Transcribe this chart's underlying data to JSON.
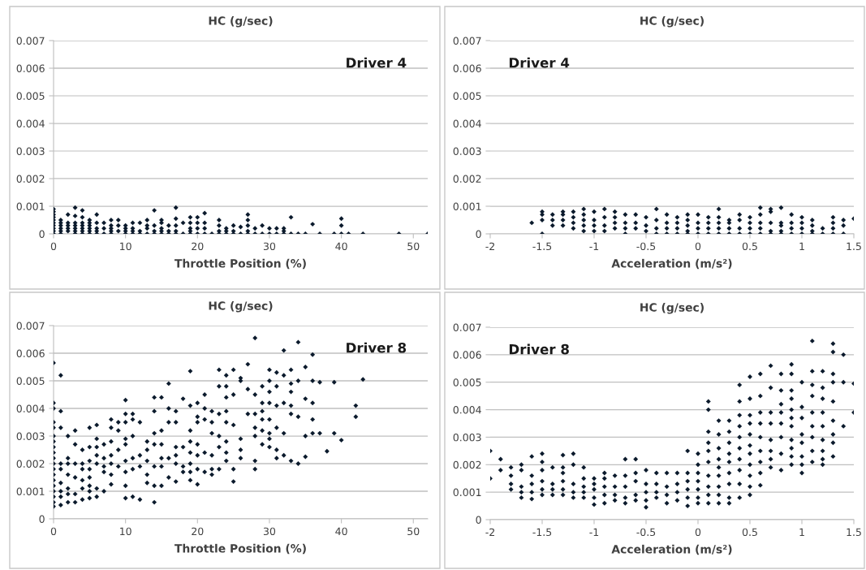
{
  "chart_data": [
    {
      "type": "scatter",
      "title": "HC (g/sec)",
      "xlabel": "Throttle Position (%)",
      "annotations": [
        "Driver 4"
      ],
      "color": "#0b1a2c",
      "marker": "diamond",
      "grid": "y",
      "xlim": [
        0,
        52
      ],
      "xticks": [
        0,
        10,
        20,
        30,
        40,
        50
      ],
      "ylim": [
        0,
        0.007
      ],
      "yticks": [
        0,
        0.001,
        0.002,
        0.003,
        0.004,
        0.005,
        0.006,
        0.007
      ],
      "x": [
        0,
        0,
        0,
        0,
        0,
        0,
        0,
        0,
        0,
        0,
        1,
        1,
        1,
        1,
        1,
        1,
        2,
        2,
        2,
        2,
        2,
        3,
        3,
        3,
        3,
        3,
        3,
        3,
        4,
        4,
        4,
        4,
        4,
        4,
        4,
        5,
        5,
        5,
        5,
        5,
        5,
        6,
        6,
        6,
        6,
        6,
        7,
        7,
        7,
        8,
        8,
        8,
        8,
        8,
        9,
        9,
        9,
        10,
        10,
        10,
        10,
        11,
        11,
        11,
        11,
        12,
        12,
        12,
        13,
        13,
        13,
        13,
        14,
        14,
        14,
        14,
        15,
        15,
        15,
        15,
        15,
        16,
        16,
        16,
        17,
        17,
        17,
        17,
        17,
        18,
        18,
        19,
        19,
        19,
        19,
        19,
        20,
        20,
        20,
        20,
        21,
        21,
        21,
        21,
        22,
        23,
        23,
        23,
        23,
        24,
        24,
        24,
        25,
        25,
        25,
        26,
        26,
        27,
        27,
        27,
        27,
        27,
        28,
        28,
        29,
        29,
        30,
        30,
        31,
        31,
        32,
        32,
        32,
        33,
        33,
        34,
        35,
        36,
        37,
        39,
        40,
        40,
        40,
        41,
        43,
        48,
        52
      ],
      "values": [
        0,
        0.0001,
        0.0002,
        0.0003,
        0.0004,
        0.0005,
        0.0006,
        0.0007,
        0.0008,
        0.0009,
        0,
        0.0001,
        0.0002,
        0.0003,
        0.0004,
        0.0005,
        0.0001,
        0.0002,
        0.0003,
        0.0004,
        0.0007,
        0,
        0.0001,
        0.0002,
        0.0003,
        0.0004,
        0.00065,
        0.00095,
        0,
        0.0001,
        0.0002,
        0.0003,
        0.0004,
        0.0006,
        0.00085,
        0,
        0.0001,
        0.0002,
        0.0003,
        0.0004,
        0.0005,
        0,
        0.0001,
        0.0002,
        0.0004,
        0.0007,
        0,
        0.0002,
        0.0004,
        0,
        0.0001,
        0.0002,
        0.0003,
        0.0005,
        0.0001,
        0.0003,
        0.0005,
        0,
        0.0001,
        0.0002,
        0.0003,
        0,
        0.0001,
        0.0002,
        0.0004,
        0,
        0.0001,
        0.0004,
        0,
        0.0002,
        0.0003,
        0.0005,
        0,
        0.0001,
        0.0003,
        0.00085,
        0,
        0.0001,
        0.0002,
        0.0004,
        0.0005,
        0,
        0.0001,
        0.0003,
        0,
        0.0001,
        0.0003,
        0.00055,
        0.00095,
        0,
        0.0004,
        0,
        0.0001,
        0.0002,
        0.0004,
        0.0006,
        0,
        0.0002,
        0.0004,
        0.0006,
        0,
        0.0002,
        0.0004,
        0.00075,
        0,
        0,
        0.0001,
        0.0003,
        0.0005,
        0,
        0.0001,
        0.0002,
        0,
        0.0001,
        0.0003,
        0,
        0.00025,
        0,
        0.0001,
        0.0003,
        0.0005,
        0.0007,
        0,
        0.0002,
        0,
        0.0003,
        0,
        0.0002,
        0,
        0.0002,
        0,
        0.0001,
        0.0002,
        0,
        0.0006,
        0,
        0,
        0.00035,
        0,
        0,
        0,
        0.0003,
        0.00055,
        0,
        0,
        0,
        0
      ]
    },
    {
      "type": "scatter",
      "title": "HC (g/sec)",
      "xlabel": "Acceleration (m/s²)",
      "annotations": [
        "Driver 4"
      ],
      "color": "#0b1a2c",
      "marker": "diamond",
      "grid": "y",
      "xlim": [
        -2,
        1.5
      ],
      "xticks": [
        -2,
        -1.5,
        -1,
        -0.5,
        0,
        0.5,
        1,
        1.5
      ],
      "ylim": [
        0,
        0.007
      ],
      "yticks": [
        0,
        0.001,
        0.002,
        0.003,
        0.004,
        0.005,
        0.006,
        0.007
      ],
      "x": [
        -1.6,
        -1.5,
        -1.5,
        -1.5,
        -1.5,
        -1.4,
        -1.4,
        -1.4,
        -1.3,
        -1.3,
        -1.3,
        -1.3,
        -1.2,
        -1.2,
        -1.2,
        -1.2,
        -1.1,
        -1.1,
        -1.1,
        -1.1,
        -1.1,
        -1,
        -1,
        -1,
        -1,
        -0.9,
        -0.9,
        -0.9,
        -0.9,
        -0.8,
        -0.8,
        -0.8,
        -0.8,
        -0.7,
        -0.7,
        -0.7,
        -0.7,
        -0.6,
        -0.6,
        -0.6,
        -0.5,
        -0.5,
        -0.5,
        -0.4,
        -0.4,
        -0.4,
        -0.4,
        -0.3,
        -0.3,
        -0.3,
        -0.3,
        -0.2,
        -0.2,
        -0.2,
        -0.2,
        -0.1,
        -0.1,
        -0.1,
        -0.1,
        -0.1,
        0,
        0,
        0,
        0,
        0.1,
        0.1,
        0.1,
        0.1,
        0.2,
        0.2,
        0.2,
        0.2,
        0.2,
        0.3,
        0.3,
        0.3,
        0.3,
        0.4,
        0.4,
        0.4,
        0.4,
        0.5,
        0.5,
        0.5,
        0.5,
        0.6,
        0.6,
        0.6,
        0.6,
        0.6,
        0.7,
        0.7,
        0.7,
        0.7,
        0.7,
        0.8,
        0.8,
        0.8,
        0.8,
        0.8,
        0.9,
        0.9,
        0.9,
        0.9,
        1,
        1,
        1,
        1,
        1.1,
        1.1,
        1.1,
        1.1,
        1.2,
        1.2,
        1.3,
        1.3,
        1.3,
        1.3,
        1.4,
        1.4,
        1.4,
        1.5
      ],
      "values": [
        0.0004,
        0,
        0.0005,
        0.0007,
        0.0008,
        0.0003,
        0.0005,
        0.0007,
        0.0003,
        0.0005,
        0.0007,
        0.0008,
        0.0002,
        0.0004,
        0.0006,
        0.0008,
        0.0001,
        0.0003,
        0.0005,
        0.0007,
        0.0009,
        0.0001,
        0.0003,
        0.0005,
        0.0008,
        0.0001,
        0.0003,
        0.0006,
        0.0009,
        0.0002,
        0.0004,
        0.0006,
        0.0008,
        0,
        0.0002,
        0.0004,
        0.0007,
        0.0002,
        0.0004,
        0.0007,
        0.0001,
        0.0003,
        0.0006,
        0,
        0.0002,
        0.0005,
        0.0009,
        0,
        0.0002,
        0.0004,
        0.0007,
        0,
        0.0002,
        0.0004,
        0.0006,
        0,
        0.0001,
        0.0003,
        0.0005,
        0.0007,
        0,
        0.0002,
        0.0004,
        0.0007,
        0,
        0.0002,
        0.0004,
        0.0006,
        0,
        0.0002,
        0.0004,
        0.0006,
        0.0009,
        0,
        0.0002,
        0.0004,
        0.0005,
        0,
        0.0002,
        0.0005,
        0.0007,
        0,
        0.0002,
        0.0004,
        0.0006,
        0,
        0.0002,
        0.0004,
        0.0007,
        0.00095,
        0,
        0.0001,
        0.0004,
        0.0008,
        0.0009,
        0,
        0.0001,
        0.0003,
        0.0004,
        0.00095,
        0,
        0.0002,
        0.0004,
        0.0007,
        0,
        0.0002,
        0.0004,
        0.0006,
        0,
        0.0001,
        0.0003,
        0.0005,
        0,
        0.0002,
        0,
        0.0002,
        0.0004,
        0.0006,
        0,
        0.0003,
        0.0005,
        0.00055
      ]
    },
    {
      "type": "scatter",
      "title": "HC (g/sec)",
      "xlabel": "Throttle Position (%)",
      "annotations": [
        "Driver 8"
      ],
      "color": "#0b1a2c",
      "marker": "diamond",
      "grid": "y",
      "xlim": [
        0,
        52
      ],
      "xticks": [
        0,
        10,
        20,
        30,
        40,
        50
      ],
      "ylim": [
        0,
        0.007
      ],
      "yticks": [
        0,
        0.001,
        0.002,
        0.003,
        0.004,
        0.005,
        0.006,
        0.007
      ],
      "x": [
        0,
        0,
        0,
        0,
        0,
        0,
        0,
        0,
        0,
        0,
        0,
        0,
        0,
        0,
        0,
        0,
        0,
        0,
        0,
        1,
        1,
        1,
        1,
        1,
        1,
        1,
        1,
        1,
        2,
        2,
        2,
        2,
        2,
        2,
        2,
        3,
        3,
        3,
        3,
        3,
        3,
        4,
        4,
        4,
        4,
        4,
        4,
        5,
        5,
        5,
        5,
        5,
        5,
        5,
        5,
        6,
        6,
        6,
        6,
        6,
        6,
        6,
        7,
        7,
        7,
        7,
        7,
        8,
        8,
        8,
        8,
        8,
        8,
        8,
        9,
        9,
        9,
        9,
        10,
        10,
        10,
        10,
        10,
        10,
        10,
        10,
        10,
        11,
        11,
        11,
        11,
        11,
        11,
        12,
        12,
        12,
        12,
        13,
        13,
        13,
        13,
        13,
        14,
        14,
        14,
        14,
        14,
        14,
        14,
        15,
        15,
        15,
        15,
        15,
        15,
        16,
        16,
        16,
        16,
        16,
        17,
        17,
        17,
        17,
        17,
        17,
        18,
        18,
        18,
        18,
        19,
        19,
        19,
        19,
        19,
        19,
        19,
        19,
        20,
        20,
        20,
        20,
        20,
        20,
        20,
        21,
        21,
        21,
        21,
        21,
        22,
        22,
        22,
        22,
        22,
        22,
        23,
        23,
        23,
        23,
        23,
        23,
        24,
        24,
        24,
        24,
        24,
        24,
        24,
        24,
        25,
        25,
        25,
        25,
        25,
        26,
        26,
        26,
        26,
        26,
        27,
        27,
        27,
        28,
        28,
        28,
        28,
        28,
        28,
        28,
        29,
        29,
        29,
        29,
        29,
        29,
        30,
        30,
        30,
        30,
        30,
        30,
        30,
        30,
        31,
        31,
        31,
        31,
        31,
        31,
        32,
        32,
        32,
        32,
        32,
        33,
        33,
        33,
        33,
        33,
        33,
        34,
        34,
        34,
        34,
        35,
        35,
        35,
        35,
        36,
        36,
        36,
        36,
        36,
        37,
        37,
        38,
        39,
        39,
        40,
        42,
        42,
        43
      ],
      "values": [
        0.00045,
        0.0006,
        0.0008,
        0.001,
        0.0012,
        0.0014,
        0.0016,
        0.0018,
        0.002,
        0.0022,
        0.0024,
        0.0026,
        0.0028,
        0.003,
        0.0033,
        0.0035,
        0.004,
        0.0042,
        0.00565,
        0.0005,
        0.0008,
        0.001,
        0.0013,
        0.0018,
        0.002,
        0.0033,
        0.0039,
        0.0052,
        0.0006,
        0.0009,
        0.0011,
        0.0016,
        0.002,
        0.0022,
        0.003,
        0.0006,
        0.0009,
        0.0015,
        0.002,
        0.0027,
        0.0032,
        0.0007,
        0.0011,
        0.0014,
        0.0018,
        0.002,
        0.0025,
        0.00075,
        0.001,
        0.0012,
        0.0015,
        0.0018,
        0.0021,
        0.0026,
        0.0033,
        0.0008,
        0.0011,
        0.002,
        0.0023,
        0.0026,
        0.0029,
        0.0034,
        0.001,
        0.0017,
        0.0019,
        0.0022,
        0.0027,
        0.00125,
        0.0016,
        0.002,
        0.0023,
        0.0028,
        0.0033,
        0.0036,
        0.0019,
        0.0025,
        0.0032,
        0.0035,
        0.00075,
        0.0012,
        0.0017,
        0.0021,
        0.0027,
        0.0029,
        0.0035,
        0.0038,
        0.0043,
        0.0008,
        0.0018,
        0.0022,
        0.003,
        0.0036,
        0.0038,
        0.0007,
        0.0019,
        0.0023,
        0.0035,
        0.0013,
        0.0016,
        0.0021,
        0.0025,
        0.0028,
        0.0006,
        0.0012,
        0.0019,
        0.0027,
        0.0031,
        0.0039,
        0.0044,
        0.0012,
        0.0019,
        0.0022,
        0.0027,
        0.0032,
        0.0044,
        0.0015,
        0.0022,
        0.0035,
        0.004,
        0.0049,
        0.00135,
        0.002,
        0.0023,
        0.0026,
        0.0035,
        0.0039,
        0.0017,
        0.0019,
        0.0026,
        0.00435,
        0.0014,
        0.0017,
        0.002,
        0.0024,
        0.0028,
        0.0032,
        0.0041,
        0.00535,
        0.00125,
        0.0018,
        0.0023,
        0.0027,
        0.0035,
        0.0037,
        0.0042,
        0.0017,
        0.0024,
        0.0036,
        0.004,
        0.0045,
        0.0016,
        0.0018,
        0.0023,
        0.0031,
        0.0035,
        0.0039,
        0.0018,
        0.0026,
        0.003,
        0.0038,
        0.0048,
        0.0054,
        0.0021,
        0.0024,
        0.0028,
        0.0035,
        0.0039,
        0.0044,
        0.0048,
        0.0052,
        0.00135,
        0.0018,
        0.0034,
        0.0045,
        0.0054,
        0.0022,
        0.0025,
        0.0029,
        0.005,
        0.0051,
        0.0038,
        0.0047,
        0.0056,
        0.0018,
        0.0021,
        0.003,
        0.0033,
        0.0038,
        0.0045,
        0.00655,
        0.0027,
        0.0032,
        0.0036,
        0.0039,
        0.0042,
        0.0048,
        0.0026,
        0.0029,
        0.0031,
        0.0036,
        0.0042,
        0.0046,
        0.005,
        0.0054,
        0.0022,
        0.0025,
        0.0033,
        0.0041,
        0.0048,
        0.0053,
        0.0023,
        0.0031,
        0.0042,
        0.0052,
        0.0061,
        0.0021,
        0.0038,
        0.0041,
        0.0046,
        0.0049,
        0.0054,
        0.002,
        0.0037,
        0.005,
        0.0064,
        0.00225,
        0.003,
        0.00435,
        0.0055,
        0.0031,
        0.0036,
        0.0042,
        0.005,
        0.00595,
        0.0031,
        0.00495,
        0.00245,
        0.0031,
        0.00495,
        0.00285,
        0.0037,
        0.0041,
        0.00505
      ]
    },
    {
      "type": "scatter",
      "title": "HC (g/sec)",
      "xlabel": "Acceleration (m/s²)",
      "annotations": [
        "Driver 8"
      ],
      "color": "#0b1a2c",
      "marker": "diamond",
      "grid": "y",
      "xlim": [
        -2,
        1.5
      ],
      "xticks": [
        -2,
        -1.5,
        -1,
        -0.5,
        0,
        0.5,
        1,
        1.5
      ],
      "ylim": [
        0,
        0.007
      ],
      "yticks": [
        0,
        0.001,
        0.002,
        0.003,
        0.004,
        0.005,
        0.006,
        0.007
      ],
      "x": [
        -2,
        -2,
        -1.9,
        -1.9,
        -1.8,
        -1.8,
        -1.8,
        -1.8,
        -1.7,
        -1.7,
        -1.7,
        -1.7,
        -1.7,
        -1.6,
        -1.6,
        -1.6,
        -1.6,
        -1.6,
        -1.5,
        -1.5,
        -1.5,
        -1.5,
        -1.5,
        -1.5,
        -1.4,
        -1.4,
        -1.4,
        -1.4,
        -1.3,
        -1.3,
        -1.3,
        -1.3,
        -1.3,
        -1.3,
        -1.2,
        -1.2,
        -1.2,
        -1.2,
        -1.2,
        -1.1,
        -1.1,
        -1.1,
        -1.1,
        -1.1,
        -1,
        -1,
        -1,
        -1,
        -1,
        -0.9,
        -0.9,
        -0.9,
        -0.9,
        -0.9,
        -0.8,
        -0.8,
        -0.8,
        -0.8,
        -0.7,
        -0.7,
        -0.7,
        -0.7,
        -0.7,
        -0.6,
        -0.6,
        -0.6,
        -0.6,
        -0.6,
        -0.5,
        -0.5,
        -0.5,
        -0.5,
        -0.5,
        -0.4,
        -0.4,
        -0.4,
        -0.4,
        -0.3,
        -0.3,
        -0.3,
        -0.3,
        -0.2,
        -0.2,
        -0.2,
        -0.2,
        -0.1,
        -0.1,
        -0.1,
        -0.1,
        -0.1,
        -0.1,
        0,
        0,
        0,
        0,
        0,
        0,
        0,
        0.1,
        0.1,
        0.1,
        0.1,
        0.1,
        0.1,
        0.1,
        0.1,
        0.1,
        0.1,
        0.2,
        0.2,
        0.2,
        0.2,
        0.2,
        0.2,
        0.2,
        0.2,
        0.2,
        0.3,
        0.3,
        0.3,
        0.3,
        0.3,
        0.3,
        0.3,
        0.3,
        0.3,
        0.4,
        0.4,
        0.4,
        0.4,
        0.4,
        0.4,
        0.4,
        0.4,
        0.4,
        0.4,
        0.5,
        0.5,
        0.5,
        0.5,
        0.5,
        0.5,
        0.5,
        0.5,
        0.5,
        0.5,
        0.5,
        0.6,
        0.6,
        0.6,
        0.6,
        0.6,
        0.6,
        0.6,
        0.6,
        0.6,
        0.7,
        0.7,
        0.7,
        0.7,
        0.7,
        0.7,
        0.7,
        0.7,
        0.8,
        0.8,
        0.8,
        0.8,
        0.8,
        0.8,
        0.8,
        0.8,
        0.9,
        0.9,
        0.9,
        0.9,
        0.9,
        0.9,
        0.9,
        0.9,
        0.9,
        0.9,
        0.9,
        1,
        1,
        1,
        1,
        1,
        1,
        1,
        1,
        1.1,
        1.1,
        1.1,
        1.1,
        1.1,
        1.1,
        1.1,
        1.1,
        1.1,
        1.2,
        1.2,
        1.2,
        1.2,
        1.2,
        1.2,
        1.2,
        1.2,
        1.2,
        1.3,
        1.3,
        1.3,
        1.3,
        1.3,
        1.3,
        1.3,
        1.3,
        1.3,
        1.4,
        1.4,
        1.4,
        1.5,
        1.5
      ],
      "values": [
        0.0015,
        0.0025,
        0.0018,
        0.0022,
        0.0011,
        0.0013,
        0.0016,
        0.0019,
        0.0008,
        0.001,
        0.0012,
        0.0018,
        0.002,
        0.00075,
        0.001,
        0.0013,
        0.0016,
        0.0023,
        0.0009,
        0.0011,
        0.0014,
        0.0018,
        0.0021,
        0.0024,
        0.0009,
        0.0011,
        0.0013,
        0.0019,
        0.0009,
        0.0011,
        0.0014,
        0.0017,
        0.0019,
        0.00235,
        0.0008,
        0.001,
        0.0013,
        0.002,
        0.0024,
        0.0008,
        0.001,
        0.0012,
        0.0015,
        0.0019,
        0.00055,
        0.0008,
        0.0011,
        0.0013,
        0.0015,
        0.0006,
        0.0009,
        0.0012,
        0.0015,
        0.0017,
        0.0007,
        0.0009,
        0.0012,
        0.0016,
        0.0006,
        0.0008,
        0.0012,
        0.0016,
        0.0022,
        0.0007,
        0.0009,
        0.0014,
        0.0017,
        0.0022,
        0.00045,
        0.0007,
        0.001,
        0.0013,
        0.0018,
        0.0008,
        0.001,
        0.0013,
        0.0017,
        0.0006,
        0.0009,
        0.0012,
        0.0017,
        0.0007,
        0.001,
        0.0013,
        0.0017,
        0.0005,
        0.0008,
        0.0011,
        0.0014,
        0.0017,
        0.0025,
        0.0006,
        0.0008,
        0.0011,
        0.0014,
        0.0017,
        0.002,
        0.0024,
        0.0006,
        0.0009,
        0.0012,
        0.0016,
        0.0021,
        0.0025,
        0.0028,
        0.0032,
        0.004,
        0.0043,
        0.0006,
        0.0009,
        0.0012,
        0.0016,
        0.0019,
        0.0022,
        0.0026,
        0.0031,
        0.0036,
        0.0006,
        0.0008,
        0.0013,
        0.0017,
        0.0021,
        0.0024,
        0.0028,
        0.0032,
        0.0036,
        0.0008,
        0.0013,
        0.0018,
        0.0022,
        0.0026,
        0.003,
        0.0034,
        0.0038,
        0.0043,
        0.0049,
        0.0009,
        0.0012,
        0.0016,
        0.002,
        0.0024,
        0.0027,
        0.0031,
        0.0035,
        0.0038,
        0.0044,
        0.0052,
        0.00125,
        0.0017,
        0.0021,
        0.0025,
        0.003,
        0.0035,
        0.0039,
        0.0045,
        0.0053,
        0.0019,
        0.0022,
        0.0025,
        0.0029,
        0.0035,
        0.0039,
        0.0048,
        0.0056,
        0.0018,
        0.0024,
        0.003,
        0.0035,
        0.0039,
        0.0042,
        0.0047,
        0.0053,
        0.002,
        0.0023,
        0.0026,
        0.0029,
        0.0034,
        0.0037,
        0.004,
        0.0044,
        0.0047,
        0.0053,
        0.00565,
        0.0017,
        0.002,
        0.0023,
        0.0028,
        0.0031,
        0.0037,
        0.0041,
        0.005,
        0.0021,
        0.0025,
        0.003,
        0.0034,
        0.0039,
        0.0045,
        0.0049,
        0.0054,
        0.0065,
        0.002,
        0.0022,
        0.0025,
        0.0029,
        0.0034,
        0.0039,
        0.0044,
        0.0048,
        0.0054,
        0.0023,
        0.0028,
        0.0031,
        0.0036,
        0.0043,
        0.005,
        0.0053,
        0.0061,
        0.0064,
        0.0034,
        0.005,
        0.006,
        0.0039,
        0.00495
      ]
    }
  ]
}
